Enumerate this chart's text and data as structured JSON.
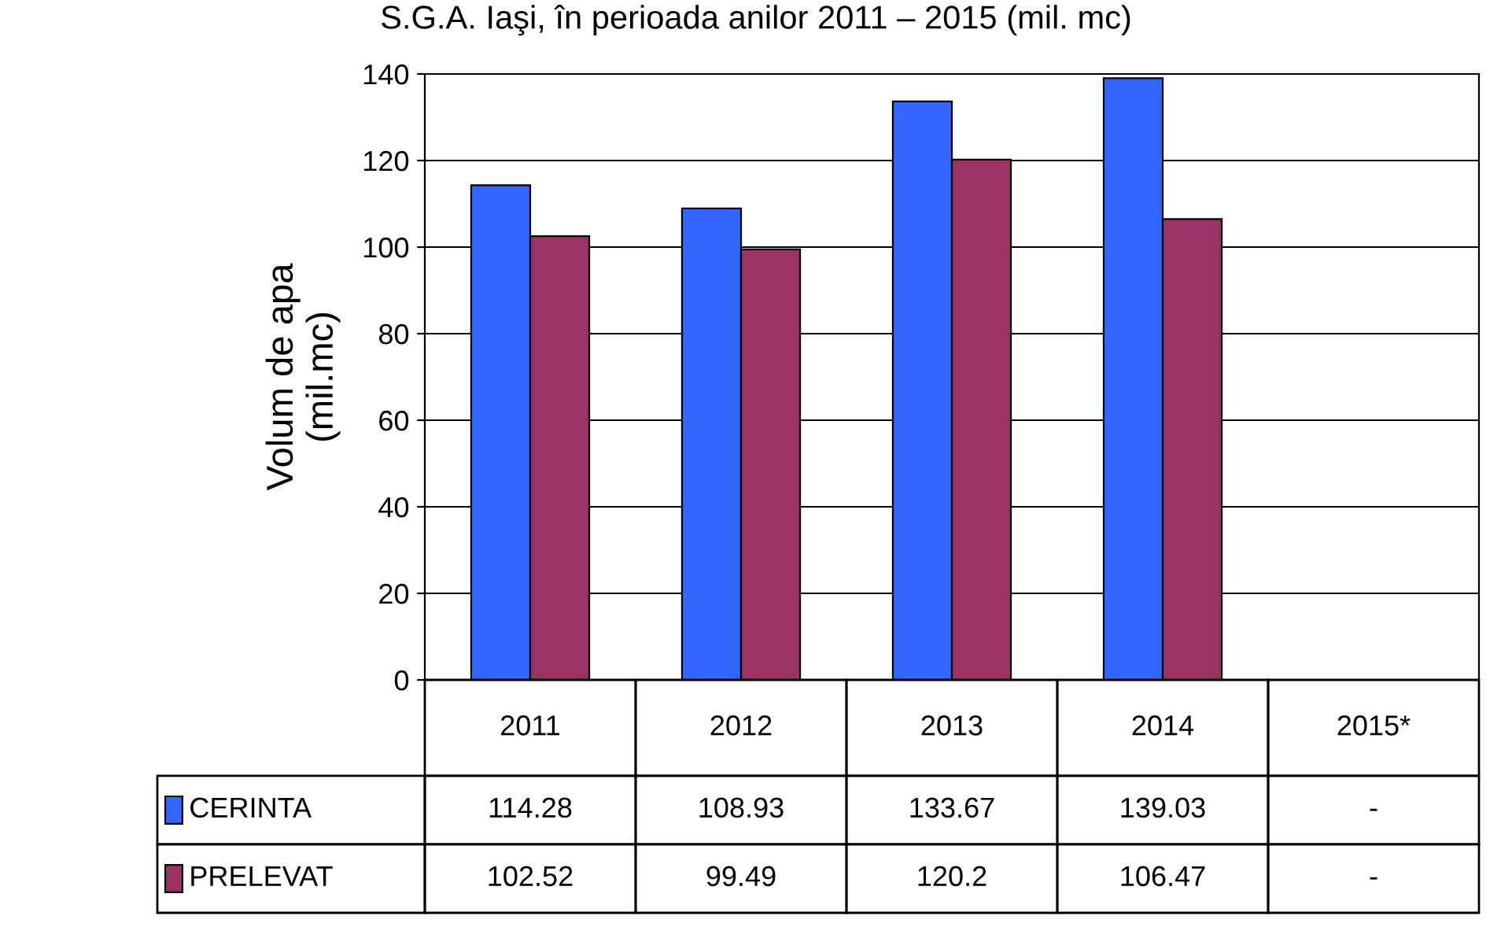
{
  "chart_data": {
    "type": "bar",
    "title": "S.G.A. Iaşi, în perioada anilor 2011 – 2015 (mil. mc)",
    "ylabel": "Volum de apa\n(mil.mc)",
    "categories": [
      "2011",
      "2012",
      "2013",
      "2014",
      "2015*"
    ],
    "series": [
      {
        "name": "CERINTA",
        "color": "#3366ff",
        "values": [
          114.28,
          108.93,
          133.67,
          139.03,
          null
        ],
        "value_labels": [
          "114.28",
          "108.93",
          "133.67",
          "139.03",
          "-"
        ]
      },
      {
        "name": "PRELEVAT",
        "color": "#993366",
        "values": [
          102.52,
          99.49,
          120.2,
          106.47,
          null
        ],
        "value_labels": [
          "102.52",
          "99.49",
          "120.2",
          "106.47",
          "-"
        ]
      }
    ],
    "ylim": [
      0,
      140
    ],
    "yticks": [
      0,
      20,
      40,
      60,
      80,
      100,
      120,
      140
    ],
    "grid": "y",
    "legend": "bottom left"
  }
}
